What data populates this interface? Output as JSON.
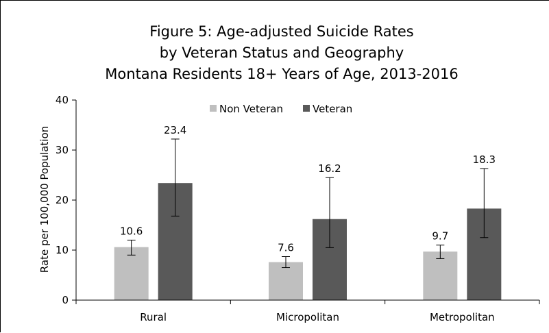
{
  "chart_data": {
    "type": "bar",
    "title": [
      "Figure 5: Age-adjusted Suicide Rates",
      "by Veteran Status and Geography",
      "Montana Residents 18+ Years of Age, 2013-2016"
    ],
    "xlabel": "",
    "ylabel": "Rate per 100,000 Population",
    "ylim": [
      0,
      40
    ],
    "yticks": [
      0,
      10,
      20,
      30,
      40
    ],
    "grid": false,
    "legend_position": "top-center",
    "categories": [
      "Rural",
      "Micropolitan",
      "Metropolitan"
    ],
    "series": [
      {
        "name": "Non Veteran",
        "color": "#bfbfbf",
        "values": [
          10.6,
          7.6,
          9.7
        ],
        "labels": [
          "10.6",
          "7.6",
          "9.7"
        ],
        "error_low": [
          9.0,
          6.5,
          8.3
        ],
        "error_high": [
          12.0,
          8.7,
          11.0
        ]
      },
      {
        "name": "Veteran",
        "color": "#595959",
        "values": [
          23.4,
          16.2,
          18.3
        ],
        "labels": [
          "23.4",
          "16.2",
          "18.3"
        ],
        "error_low": [
          16.8,
          10.5,
          12.5
        ],
        "error_high": [
          32.2,
          24.5,
          26.3
        ]
      }
    ]
  }
}
